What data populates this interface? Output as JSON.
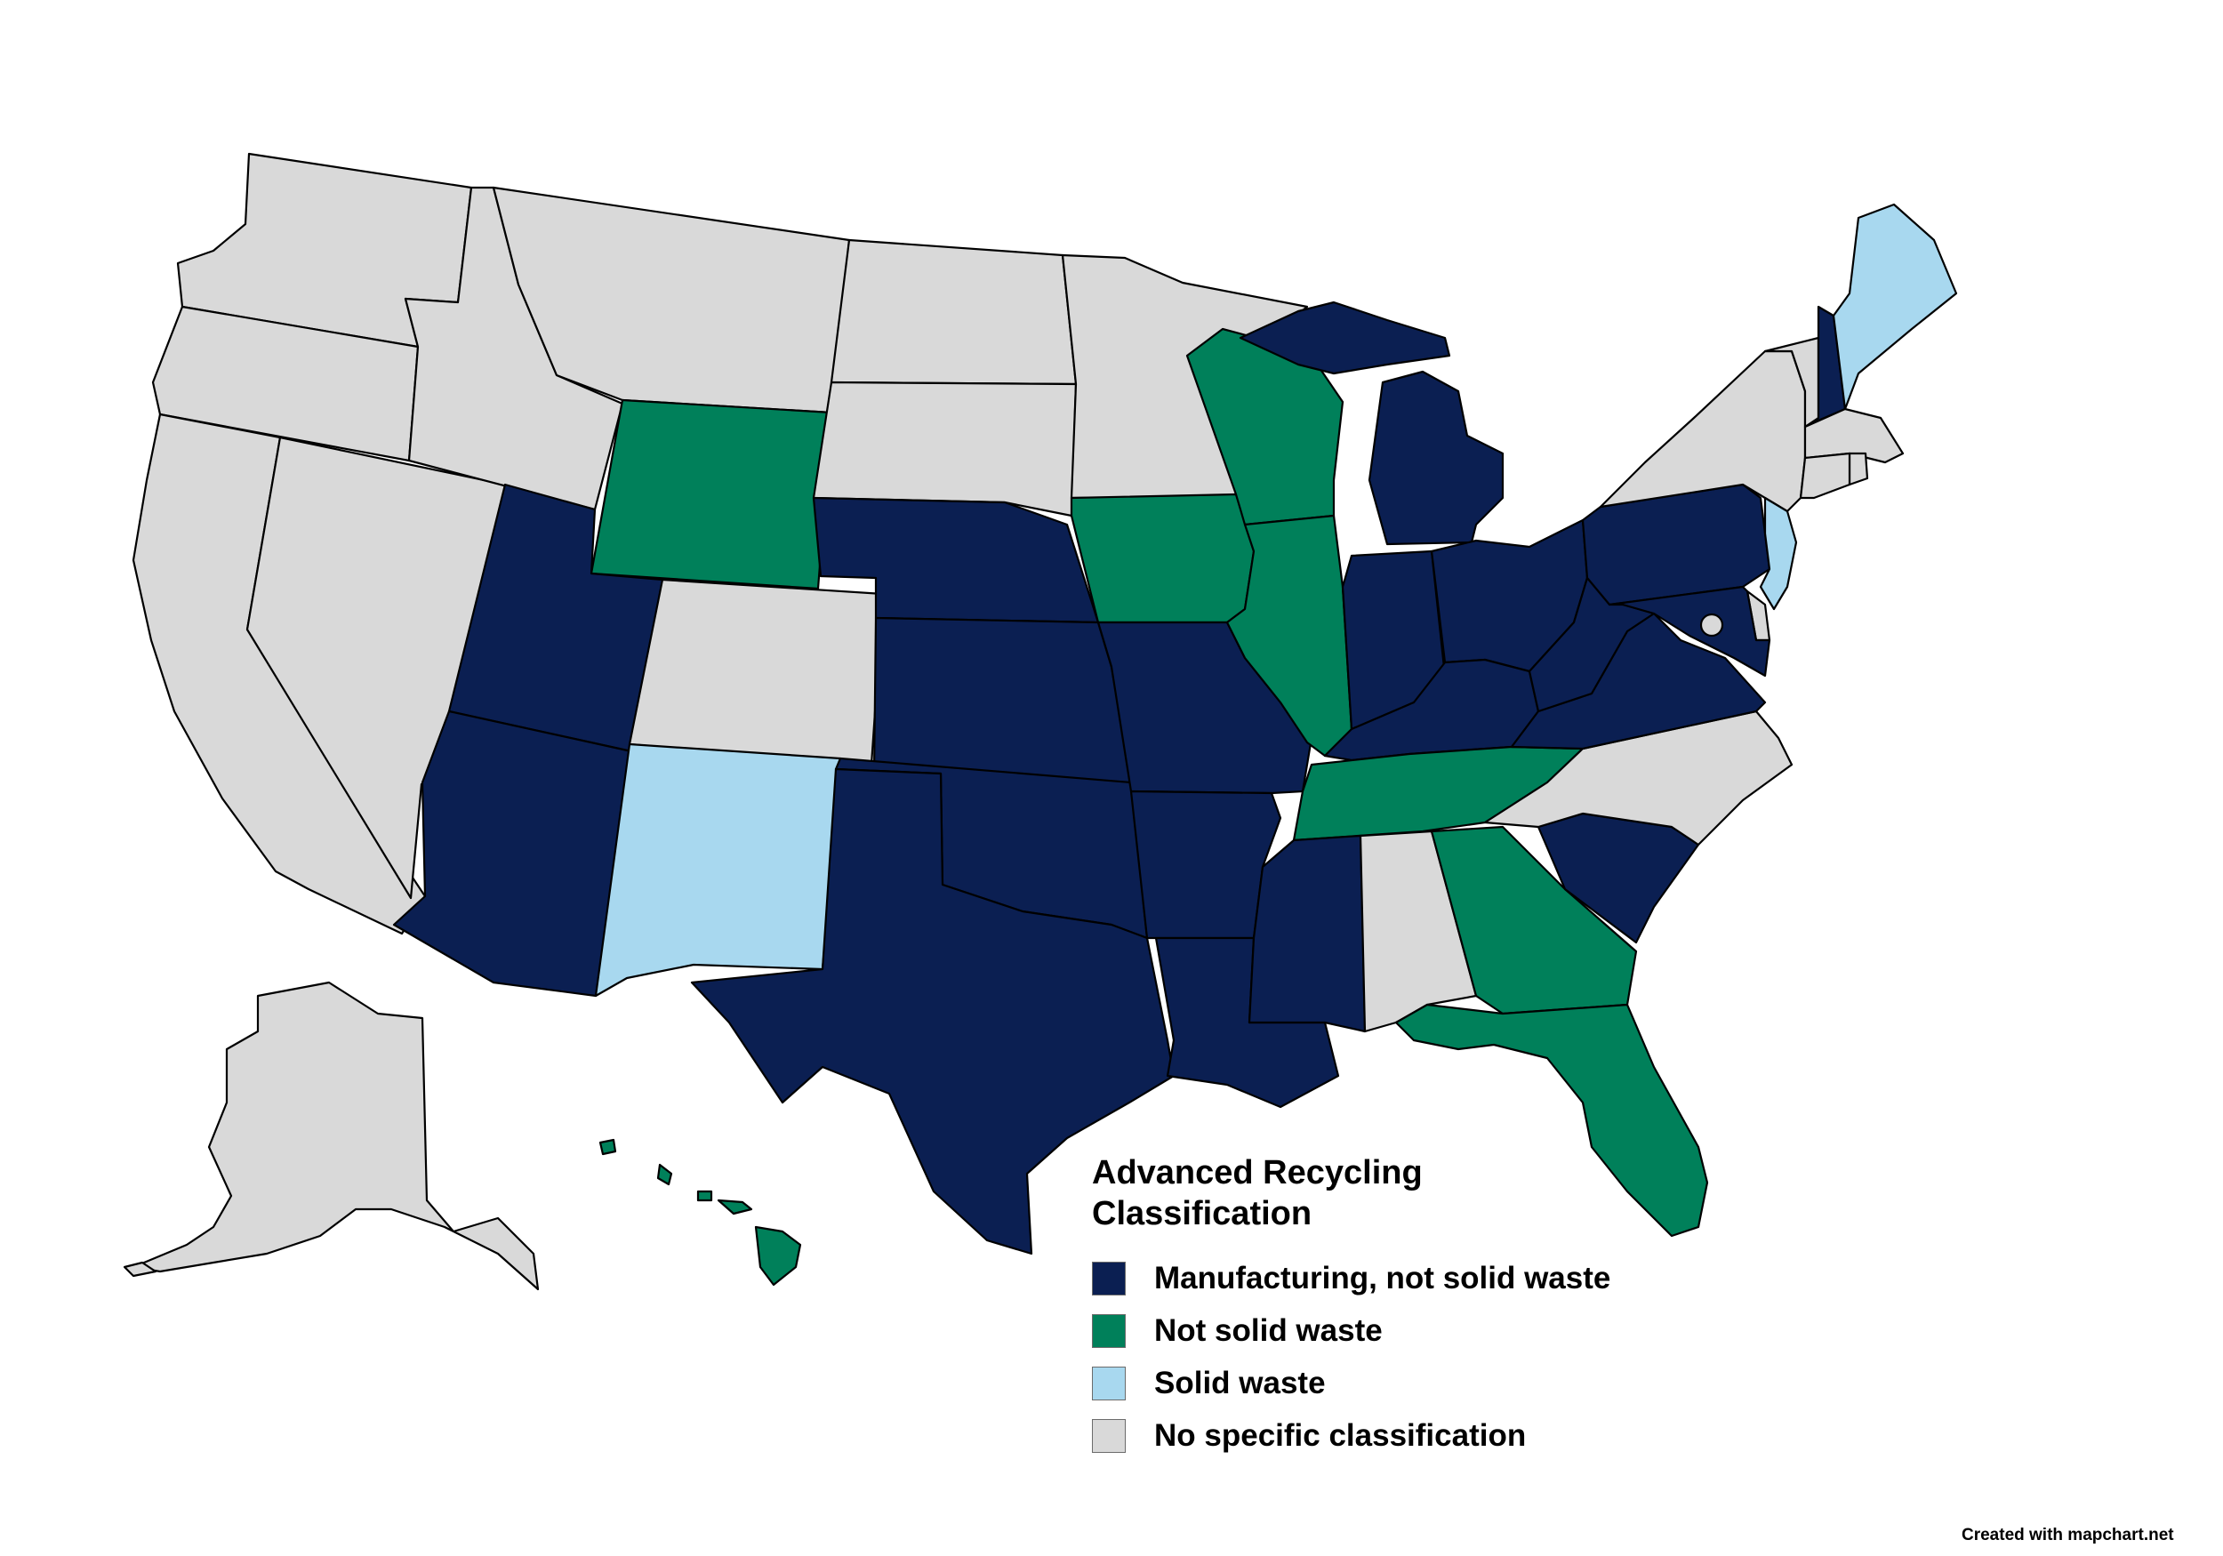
{
  "colors": {
    "manufacturing": "#0b1f52",
    "not_solid": "#00805a",
    "solid": "#a8d8ef",
    "none": "#d9d9d9"
  },
  "legend": {
    "title_line1": "Advanced Recycling",
    "title_line2": "Classification",
    "items": [
      {
        "label": "Manufacturing, not solid waste",
        "category": "manufacturing"
      },
      {
        "label": "Not solid waste",
        "category": "not_solid"
      },
      {
        "label": "Solid waste",
        "category": "solid"
      },
      {
        "label": "No specific classification",
        "category": "none"
      }
    ]
  },
  "credit": "Created with mapchart.net",
  "states": [
    {
      "abbr": "WA",
      "category": "none"
    },
    {
      "abbr": "OR",
      "category": "none"
    },
    {
      "abbr": "CA",
      "category": "none"
    },
    {
      "abbr": "NV",
      "category": "none"
    },
    {
      "abbr": "ID",
      "category": "none"
    },
    {
      "abbr": "MT",
      "category": "none"
    },
    {
      "abbr": "WY",
      "category": "not_solid"
    },
    {
      "abbr": "UT",
      "category": "manufacturing"
    },
    {
      "abbr": "AZ",
      "category": "manufacturing"
    },
    {
      "abbr": "CO",
      "category": "none"
    },
    {
      "abbr": "NM",
      "category": "solid"
    },
    {
      "abbr": "ND",
      "category": "none"
    },
    {
      "abbr": "SD",
      "category": "none"
    },
    {
      "abbr": "NE",
      "category": "manufacturing"
    },
    {
      "abbr": "KS",
      "category": "manufacturing"
    },
    {
      "abbr": "OK",
      "category": "manufacturing"
    },
    {
      "abbr": "TX",
      "category": "manufacturing"
    },
    {
      "abbr": "MN",
      "category": "none"
    },
    {
      "abbr": "IA",
      "category": "not_solid"
    },
    {
      "abbr": "MO",
      "category": "manufacturing"
    },
    {
      "abbr": "AR",
      "category": "manufacturing"
    },
    {
      "abbr": "LA",
      "category": "manufacturing"
    },
    {
      "abbr": "WI",
      "category": "not_solid"
    },
    {
      "abbr": "IL",
      "category": "not_solid"
    },
    {
      "abbr": "MI",
      "category": "manufacturing"
    },
    {
      "abbr": "IN",
      "category": "manufacturing"
    },
    {
      "abbr": "OH",
      "category": "manufacturing"
    },
    {
      "abbr": "KY",
      "category": "manufacturing"
    },
    {
      "abbr": "TN",
      "category": "not_solid"
    },
    {
      "abbr": "MS",
      "category": "manufacturing"
    },
    {
      "abbr": "AL",
      "category": "none"
    },
    {
      "abbr": "GA",
      "category": "not_solid"
    },
    {
      "abbr": "FL",
      "category": "not_solid"
    },
    {
      "abbr": "SC",
      "category": "manufacturing"
    },
    {
      "abbr": "NC",
      "category": "none"
    },
    {
      "abbr": "VA",
      "category": "manufacturing"
    },
    {
      "abbr": "WV",
      "category": "manufacturing"
    },
    {
      "abbr": "PA",
      "category": "manufacturing"
    },
    {
      "abbr": "NY",
      "category": "none"
    },
    {
      "abbr": "VT",
      "category": "none"
    },
    {
      "abbr": "NH",
      "category": "manufacturing"
    },
    {
      "abbr": "ME",
      "category": "solid"
    },
    {
      "abbr": "MA",
      "category": "none"
    },
    {
      "abbr": "RI",
      "category": "none"
    },
    {
      "abbr": "CT",
      "category": "none"
    },
    {
      "abbr": "NJ",
      "category": "solid"
    },
    {
      "abbr": "DE",
      "category": "none"
    },
    {
      "abbr": "MD",
      "category": "manufacturing"
    },
    {
      "abbr": "DC",
      "category": "none"
    },
    {
      "abbr": "AK",
      "category": "none"
    },
    {
      "abbr": "HI",
      "category": "not_solid"
    }
  ]
}
